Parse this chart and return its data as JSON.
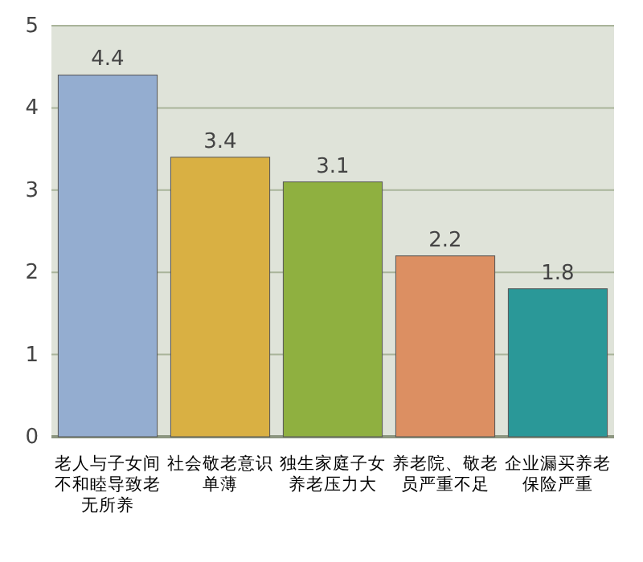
{
  "chart_data": {
    "type": "bar",
    "categories": [
      "老人与子女间不和睦导致老无所养",
      "社会敬老意识单薄",
      "独生家庭子女养老压力大",
      "养老院、敬老员严重不足",
      "企业漏买养老保险严重"
    ],
    "values": [
      4.4,
      3.4,
      3.1,
      2.2,
      1.8
    ],
    "colors": [
      "#94add0",
      "#d9b043",
      "#8fb040",
      "#dc8f62",
      "#2a9898"
    ],
    "ylim": [
      0,
      5
    ],
    "yticks": [
      0,
      1,
      2,
      3,
      4,
      5
    ],
    "grid": "y",
    "data_labels": true
  }
}
